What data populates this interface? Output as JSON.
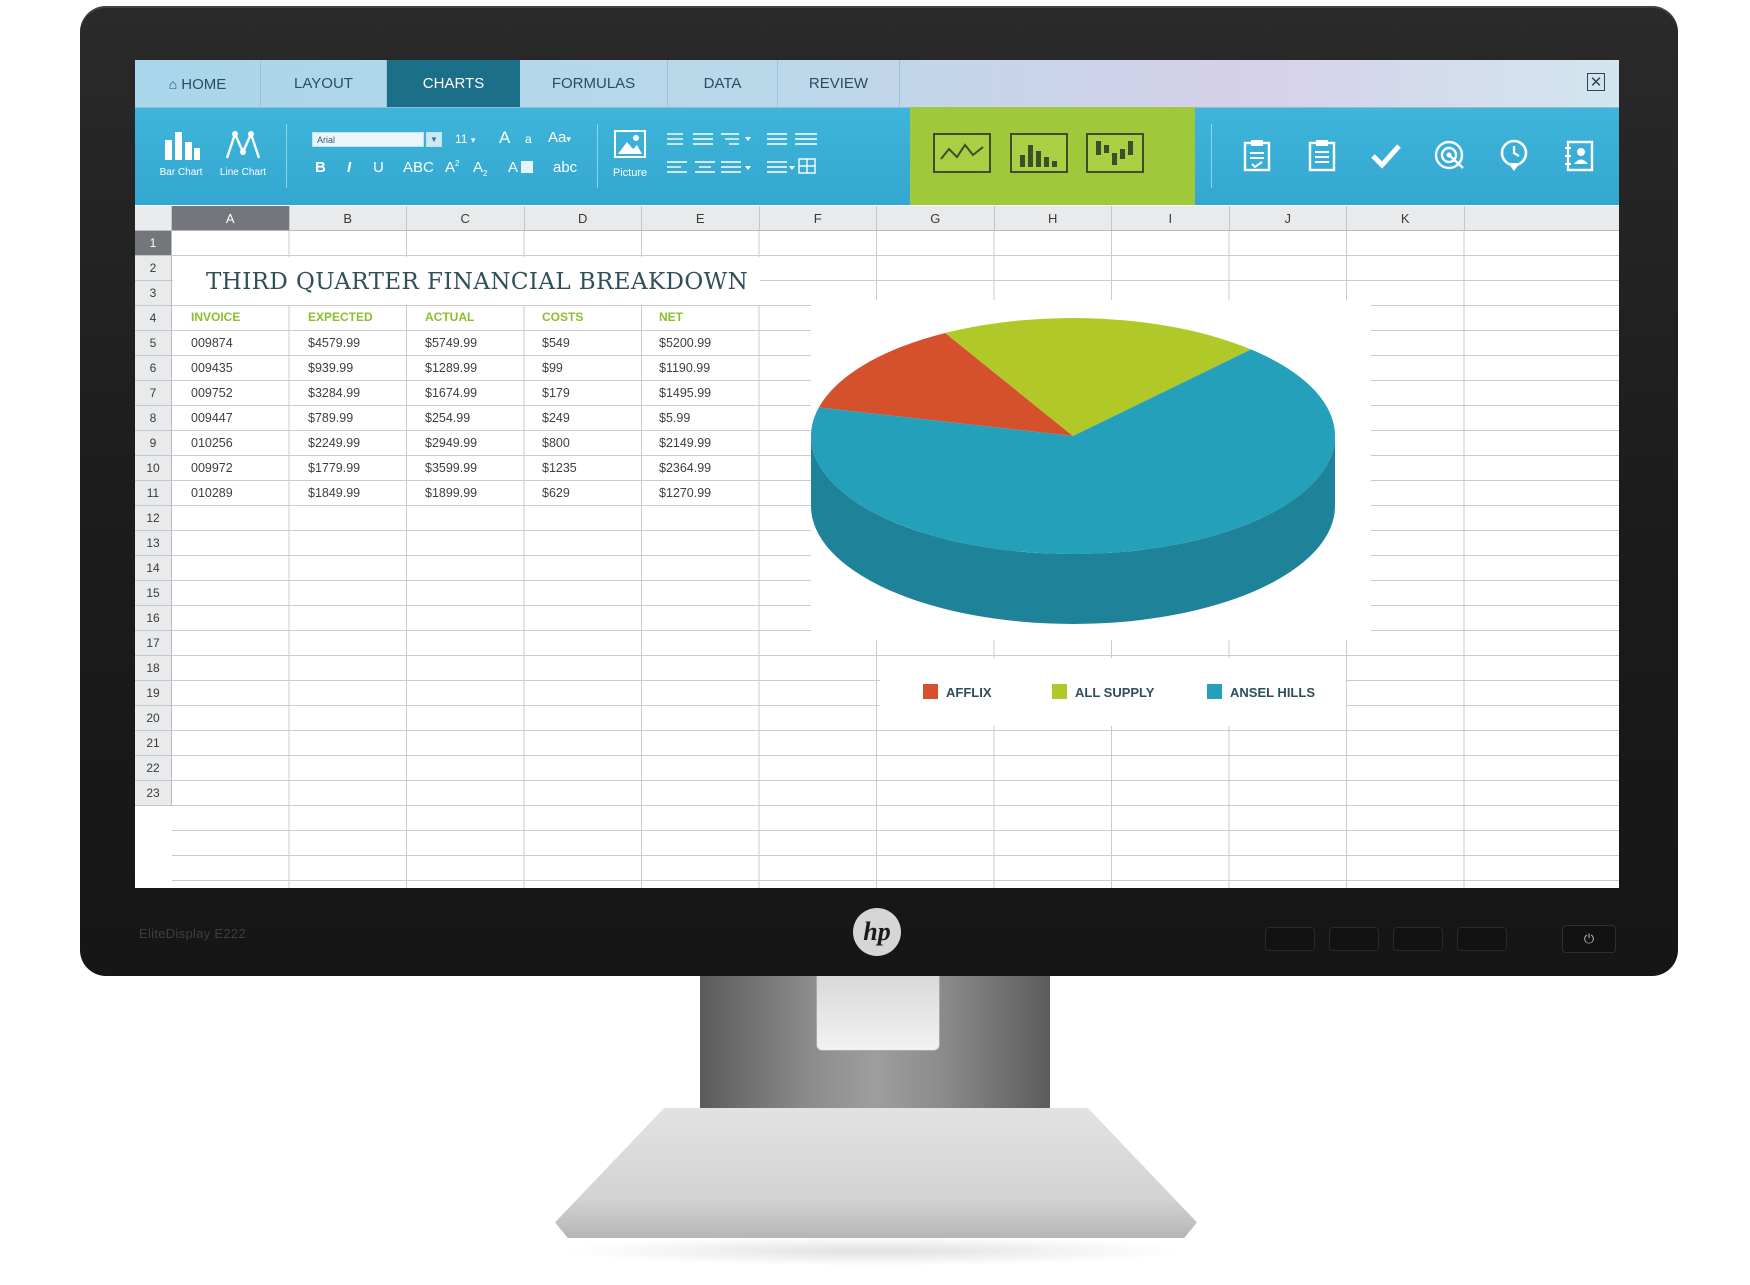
{
  "device": {
    "model_label": "EliteDisplay E222",
    "brand_logo": "hp",
    "power_symbol": "⏻"
  },
  "tabs": [
    {
      "label": "HOME",
      "icon": "home-icon"
    },
    {
      "label": "LAYOUT"
    },
    {
      "label": "CHARTS",
      "active": true
    },
    {
      "label": "FORMULAS"
    },
    {
      "label": "DATA"
    },
    {
      "label": "REVIEW"
    }
  ],
  "close_symbol": "✕",
  "ribbon": {
    "bar_chart_label": "Bar Chart",
    "line_chart_label": "Line Chart",
    "font_name": "Arial",
    "font_size": "11",
    "grow_font": "A",
    "shrink_font": "a",
    "case_menu": "Aa",
    "bold": "B",
    "italic": "I",
    "underline": "U",
    "strikethrough": "ABC",
    "superscript": "A",
    "superscript_mark": "2",
    "subscript": "A",
    "subscript_mark": "2",
    "highlight": "A",
    "lowercase": "abc",
    "picture_label": "Picture",
    "accent_panel_color": "#9fc83b"
  },
  "columns": [
    "A",
    "B",
    "C",
    "D",
    "E",
    "F",
    "G",
    "H",
    "I",
    "J",
    "K"
  ],
  "rows": [
    "1",
    "2",
    "3",
    "4",
    "5",
    "6",
    "7",
    "8",
    "9",
    "10",
    "11",
    "12",
    "13",
    "14",
    "15",
    "16",
    "17",
    "18",
    "19",
    "20",
    "21",
    "22",
    "23"
  ],
  "sheet": {
    "title": "THIRD QUARTER FINANCIAL BREAKDOWN",
    "headers": [
      "INVOICE",
      "EXPECTED",
      "ACTUAL",
      "COSTS",
      "NET"
    ],
    "data": [
      [
        "009874",
        "$4579.99",
        "$5749.99",
        "$549",
        "$5200.99"
      ],
      [
        "009435",
        "$939.99",
        "$1289.99",
        "$99",
        "$1190.99"
      ],
      [
        "009752",
        "$3284.99",
        "$1674.99",
        "$179",
        "$1495.99"
      ],
      [
        "009447",
        "$789.99",
        "$254.99",
        "$249",
        "$5.99"
      ],
      [
        "010256",
        "$2249.99",
        "$2949.99",
        "$800",
        "$2149.99"
      ],
      [
        "009972",
        "$1779.99",
        "$3599.99",
        "$1235",
        "$2364.99"
      ],
      [
        "010289",
        "$1849.99",
        "$1899.99",
        "$629",
        "$1270.99"
      ]
    ]
  },
  "chart_data": {
    "type": "pie",
    "style": "3d",
    "categories": [
      "AFFLIX",
      "ALL SUPPLY",
      "ANSEL HILLS"
    ],
    "values": [
      13,
      20,
      67
    ],
    "colors": [
      "#d4512c",
      "#b0c928",
      "#24a0bb"
    ],
    "legend_position": "bottom"
  }
}
